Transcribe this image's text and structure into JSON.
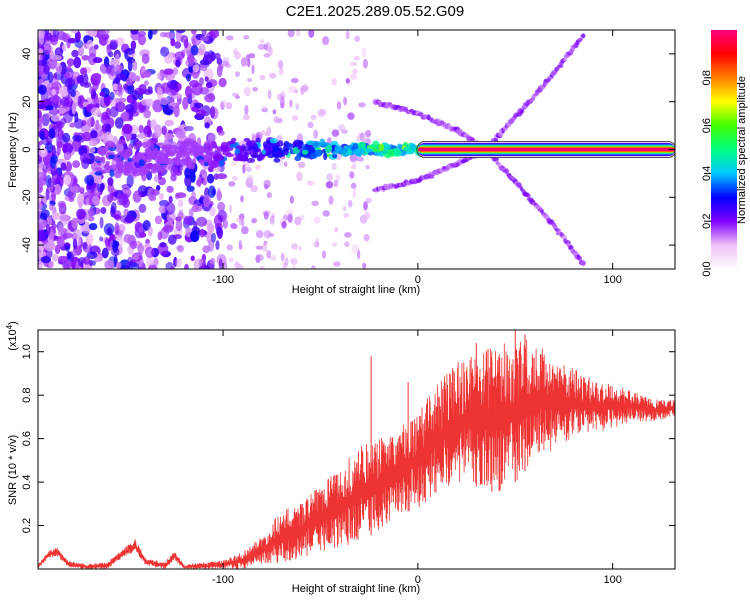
{
  "title": "C2E1.2025.289.05.52.G09",
  "chart_data": [
    {
      "type": "heatmap",
      "panel": "top",
      "xlabel": "Height of straight line (km)",
      "ylabel": "Frequency (Hz)",
      "xlim": [
        -195,
        132
      ],
      "ylim": [
        -50,
        50
      ],
      "xticks": [
        -100,
        0,
        100
      ],
      "xtick_labels": [
        "-100",
        "0",
        "100"
      ],
      "yticks": [
        -40,
        -20,
        0,
        20,
        40
      ],
      "ytick_labels": [
        "-40",
        "-20",
        "0",
        "20",
        "40"
      ],
      "colorbar": {
        "label": "Normalized spectral amplitude",
        "range": [
          0,
          1
        ],
        "ticks": [
          0,
          0.2,
          0.4,
          0.6,
          0.8
        ],
        "tick_labels": [
          "0.0",
          "0.2",
          "0.4",
          "0.6",
          "0.8"
        ],
        "colors": [
          "#ffffff",
          "#f0c0f8",
          "#8000ff",
          "#0000ff",
          "#00c8ff",
          "#00ff80",
          "#40ff00",
          "#ffff00",
          "#ff8000",
          "#ff0000",
          "#ff0080"
        ]
      },
      "features": [
        {
          "name": "carrier line",
          "x_range": [
            0,
            132
          ],
          "frequency": 0,
          "amplitude": 1.0
        },
        {
          "name": "upper sideband",
          "points": [
            [
              -22,
              20
            ],
            [
              0,
              15
            ],
            [
              20,
              8
            ],
            [
              35,
              0
            ]
          ]
        },
        {
          "name": "lower sideband",
          "points": [
            [
              -22,
              -17
            ],
            [
              0,
              -13
            ],
            [
              20,
              -6
            ],
            [
              35,
              0
            ]
          ]
        },
        {
          "name": "rising branch",
          "points": [
            [
              35,
              0
            ],
            [
              55,
              18
            ],
            [
              70,
              32
            ],
            [
              85,
              48
            ]
          ]
        },
        {
          "name": "falling branch",
          "points": [
            [
              35,
              0
            ],
            [
              55,
              -18
            ],
            [
              70,
              -32
            ],
            [
              85,
              -48
            ]
          ]
        }
      ]
    },
    {
      "type": "line",
      "panel": "bottom",
      "xlabel": "Height of straight line (km)",
      "ylabel": "SNR (10 * v/v)",
      "y_exponent_label": "(x10",
      "y_exponent": "4",
      "y_exponent_close": ")",
      "xlim": [
        -195,
        132
      ],
      "ylim": [
        0,
        1.1
      ],
      "xticks": [
        -100,
        0,
        100
      ],
      "xtick_labels": [
        "-100",
        "0",
        "100"
      ],
      "yticks": [
        0.2,
        0.4,
        0.6,
        0.8,
        1.0
      ],
      "ytick_labels": [
        "0.2",
        "0.4",
        "0.6",
        "0.8",
        "1.0"
      ],
      "color": "#ee3333",
      "envelope": {
        "x": [
          -195,
          -190,
          -185,
          -180,
          -170,
          -160,
          -150,
          -145,
          -140,
          -130,
          -125,
          -120,
          -110,
          -100,
          -90,
          -80,
          -70,
          -60,
          -50,
          -40,
          -30,
          -20,
          -10,
          0,
          10,
          20,
          30,
          40,
          50,
          60,
          70,
          80,
          90,
          100,
          110,
          120,
          132
        ],
        "upper": [
          0.02,
          0.08,
          0.1,
          0.04,
          0.02,
          0.03,
          0.1,
          0.14,
          0.05,
          0.03,
          0.08,
          0.02,
          0.03,
          0.04,
          0.08,
          0.15,
          0.27,
          0.3,
          0.4,
          0.45,
          0.58,
          0.6,
          0.65,
          0.72,
          0.85,
          0.95,
          1.0,
          1.02,
          1.07,
          1.05,
          0.98,
          0.92,
          0.88,
          0.85,
          0.82,
          0.78,
          0.78
        ],
        "lower": [
          0.0,
          0.05,
          0.06,
          0.01,
          0.0,
          0.0,
          0.06,
          0.08,
          0.02,
          0.0,
          0.04,
          0.0,
          0.0,
          0.0,
          0.0,
          0.02,
          0.03,
          0.05,
          0.08,
          0.1,
          0.12,
          0.18,
          0.25,
          0.28,
          0.35,
          0.4,
          0.38,
          0.35,
          0.4,
          0.5,
          0.55,
          0.6,
          0.62,
          0.65,
          0.68,
          0.68,
          0.7
        ],
        "spikes": [
          [
            -24,
            0.98
          ],
          [
            -5,
            0.86
          ],
          [
            30,
            1.04
          ],
          [
            38,
            0.95
          ],
          [
            42,
            0.97
          ],
          [
            50,
            1.1
          ],
          [
            55,
            1.08
          ]
        ]
      }
    }
  ]
}
